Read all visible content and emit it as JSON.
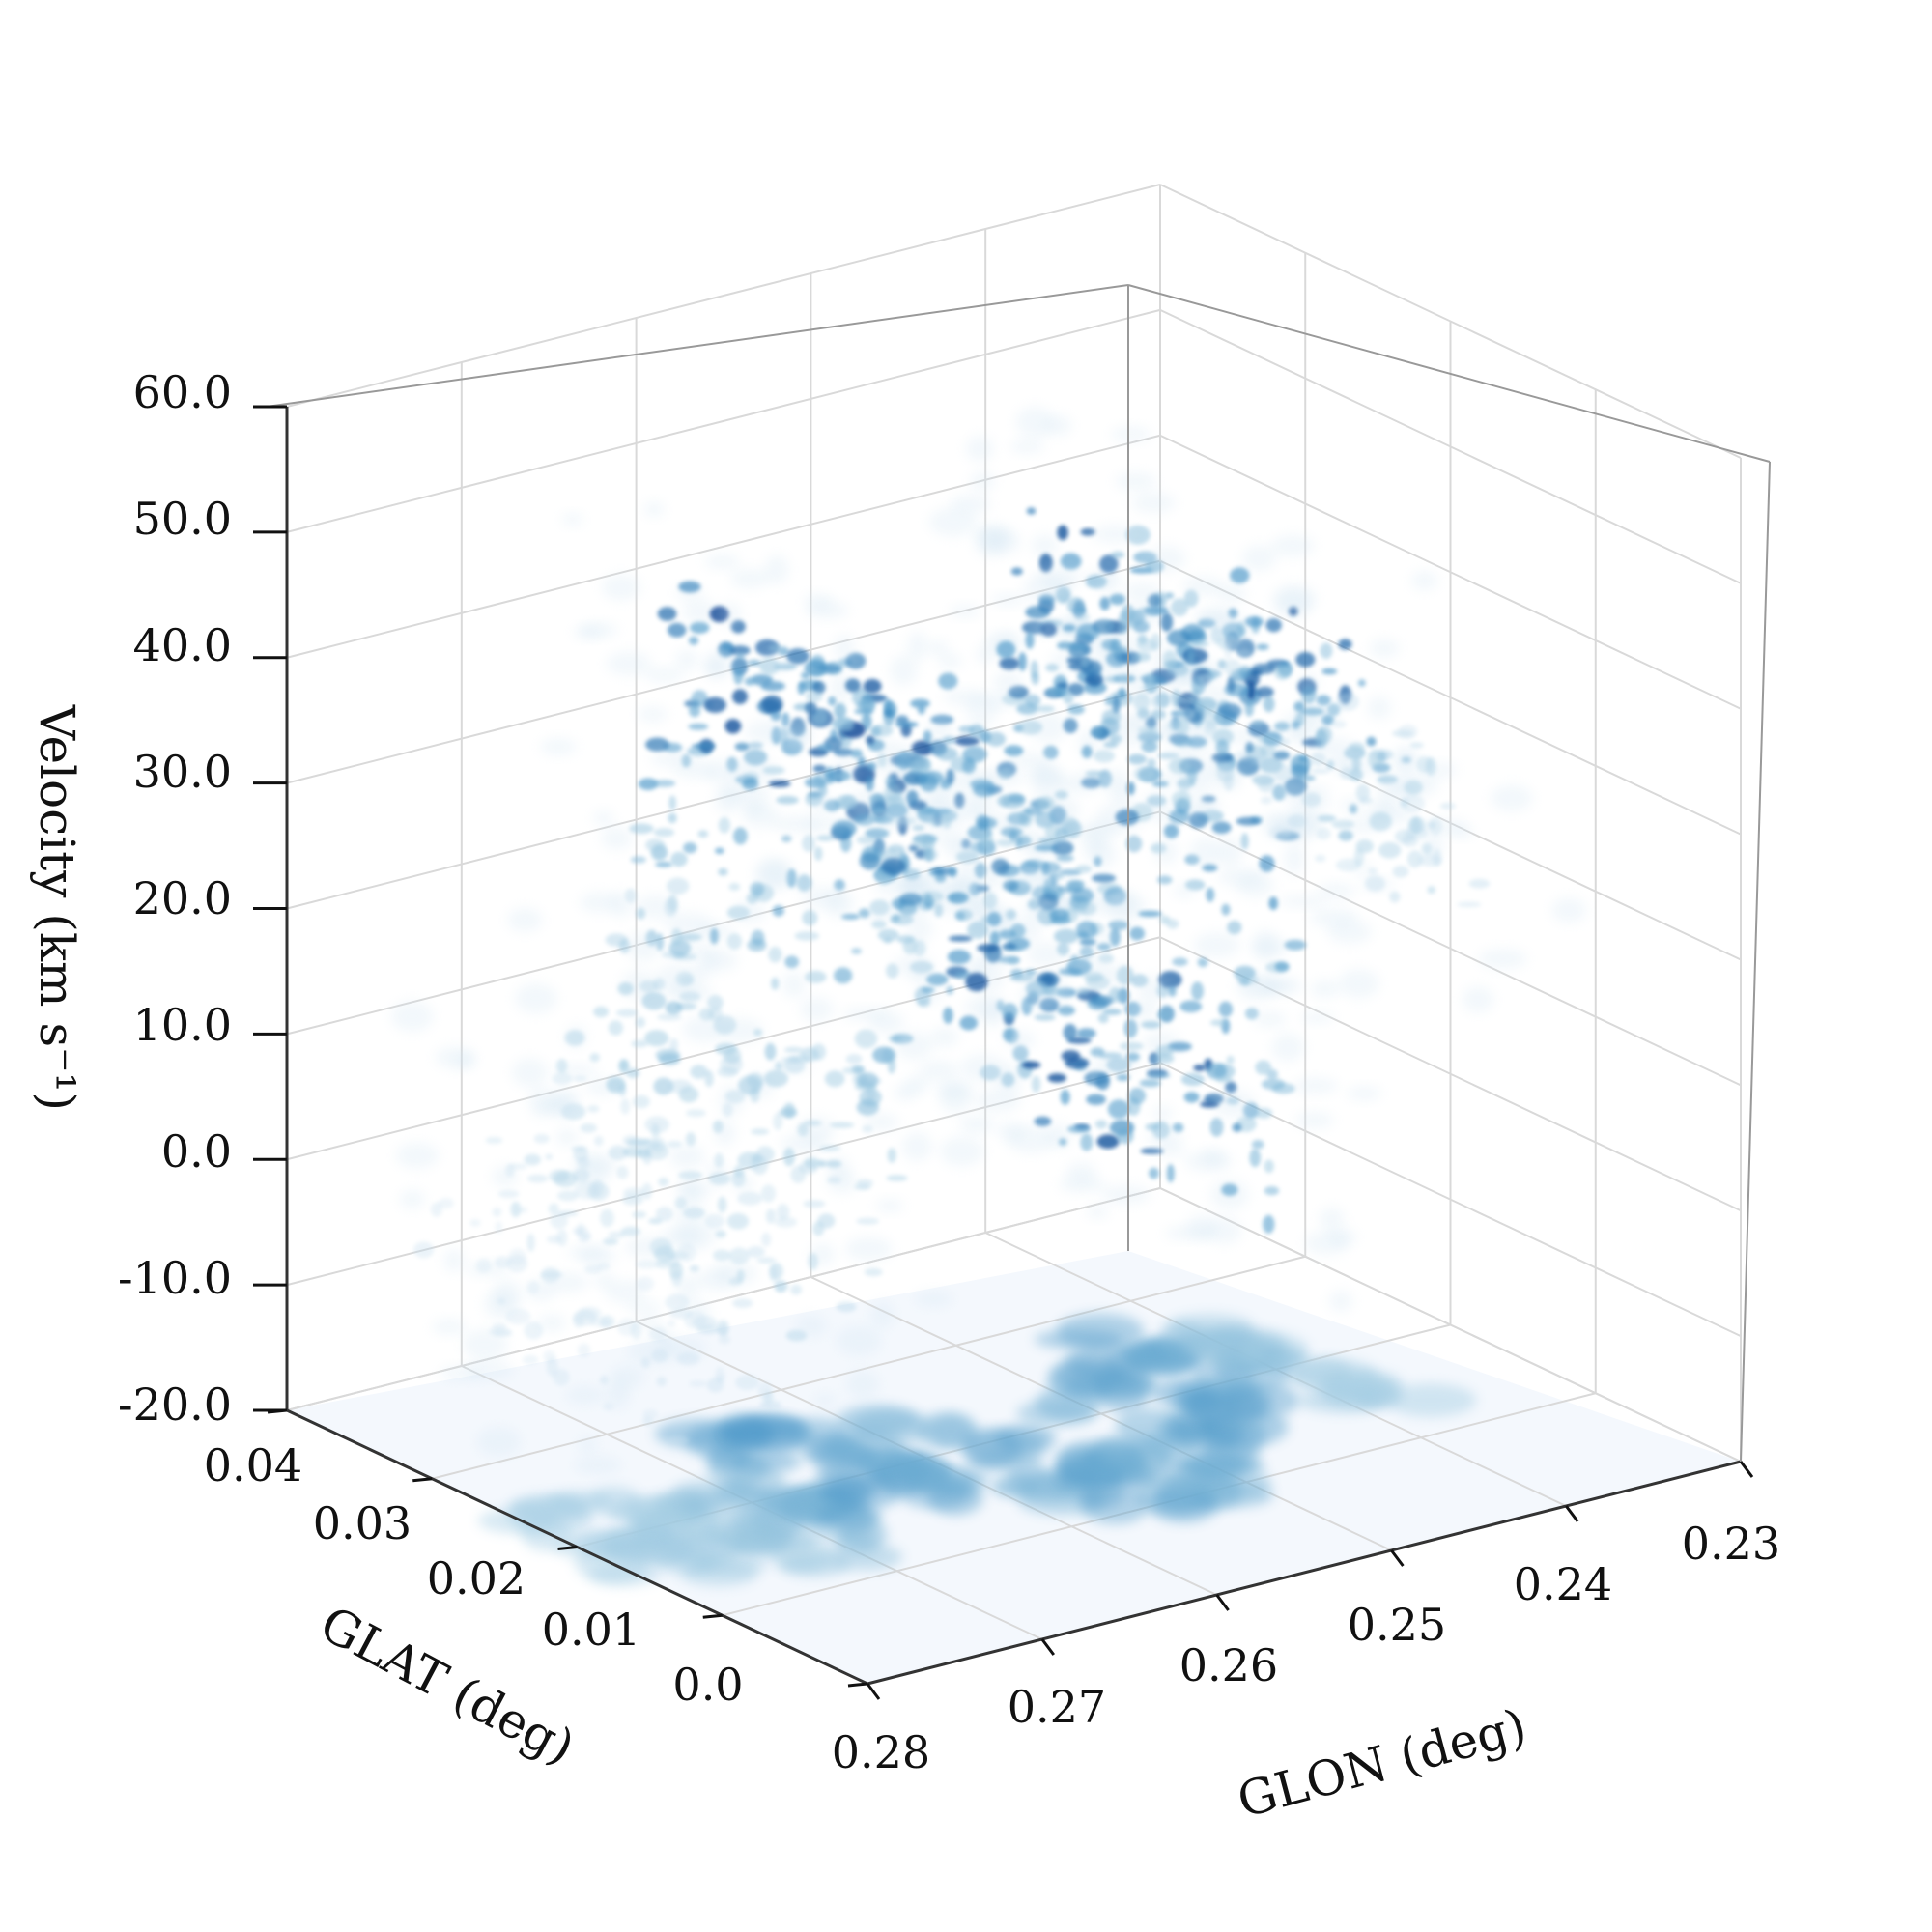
{
  "chart_data": {
    "type": "scatter",
    "projection": "3d",
    "colormap": "Blues",
    "background_colors": {
      "floor": "#f4f8fd",
      "frame": "#333333",
      "grid": "#d9d9d9"
    },
    "axes": {
      "x": {
        "label": "GLON (deg)",
        "ticks": [
          "0.28",
          "0.27",
          "0.26",
          "0.25",
          "0.24",
          "0.23"
        ],
        "range": [
          0.28,
          0.23
        ]
      },
      "y": {
        "label": "GLAT (deg)",
        "ticks": [
          "0.04",
          "0.03",
          "0.02",
          "0.01",
          "0.0"
        ],
        "range": [
          0.04,
          0.0
        ]
      },
      "z": {
        "label": "Velocity (km s⁻¹)",
        "ticks": [
          "-20.0",
          "-10.0",
          "0.0",
          "10.0",
          "20.0",
          "30.0",
          "40.0",
          "50.0",
          "60.0"
        ],
        "range": [
          -20,
          60
        ]
      }
    },
    "grid": true,
    "projected_map_on_floor": true,
    "series": [
      {
        "kind": "ppv-emission-ridge",
        "points": [
          {
            "glon": 0.2795,
            "glat": 0.02,
            "vlsr": -2,
            "intensity": 0.15
          },
          {
            "glon": 0.278,
            "glat": 0.02,
            "vlsr": 1,
            "intensity": 0.2
          },
          {
            "glon": 0.2765,
            "glat": 0.019,
            "vlsr": 5,
            "intensity": 0.3
          },
          {
            "glon": 0.275,
            "glat": 0.018,
            "vlsr": 8,
            "intensity": 0.3
          },
          {
            "glon": 0.2735,
            "glat": 0.017,
            "vlsr": 12,
            "intensity": 0.35
          },
          {
            "glon": 0.272,
            "glat": 0.017,
            "vlsr": 15,
            "intensity": 0.4
          },
          {
            "glon": 0.2705,
            "glat": 0.018,
            "vlsr": 20,
            "intensity": 0.45
          },
          {
            "glon": 0.269,
            "glat": 0.019,
            "vlsr": 26,
            "intensity": 0.55
          },
          {
            "glon": 0.2675,
            "glat": 0.02,
            "vlsr": 32,
            "intensity": 0.6
          },
          {
            "glon": 0.266,
            "glat": 0.022,
            "vlsr": 38,
            "intensity": 0.85
          },
          {
            "glon": 0.2645,
            "glat": 0.022,
            "vlsr": 40,
            "intensity": 0.9
          },
          {
            "glon": 0.263,
            "glat": 0.021,
            "vlsr": 37,
            "intensity": 0.8
          },
          {
            "glon": 0.2615,
            "glat": 0.02,
            "vlsr": 35,
            "intensity": 0.75
          },
          {
            "glon": 0.26,
            "glat": 0.019,
            "vlsr": 34,
            "intensity": 0.7
          },
          {
            "glon": 0.2585,
            "glat": 0.018,
            "vlsr": 30,
            "intensity": 0.6
          },
          {
            "glon": 0.257,
            "glat": 0.017,
            "vlsr": 25,
            "intensity": 0.65
          },
          {
            "glon": 0.2555,
            "glat": 0.016,
            "vlsr": 18,
            "intensity": 0.8
          },
          {
            "glon": 0.254,
            "glat": 0.015,
            "vlsr": 12,
            "intensity": 0.85
          },
          {
            "glon": 0.2525,
            "glat": 0.015,
            "vlsr": 10,
            "intensity": 0.7
          },
          {
            "glon": 0.251,
            "glat": 0.016,
            "vlsr": 17,
            "intensity": 0.6
          },
          {
            "glon": 0.2495,
            "glat": 0.018,
            "vlsr": 27,
            "intensity": 0.7
          },
          {
            "glon": 0.248,
            "glat": 0.019,
            "vlsr": 33,
            "intensity": 0.75
          },
          {
            "glon": 0.2465,
            "glat": 0.02,
            "vlsr": 37,
            "intensity": 0.8
          },
          {
            "glon": 0.245,
            "glat": 0.021,
            "vlsr": 40,
            "intensity": 0.85
          },
          {
            "glon": 0.2435,
            "glat": 0.022,
            "vlsr": 38,
            "intensity": 0.8
          },
          {
            "glon": 0.242,
            "glat": 0.022,
            "vlsr": 34,
            "intensity": 0.7
          },
          {
            "glon": 0.2405,
            "glat": 0.021,
            "vlsr": 30,
            "intensity": 0.55
          },
          {
            "glon": 0.239,
            "glat": 0.02,
            "vlsr": 28,
            "intensity": 0.4
          },
          {
            "glon": 0.2375,
            "glat": 0.019,
            "vlsr": 27,
            "intensity": 0.25
          }
        ]
      }
    ]
  }
}
